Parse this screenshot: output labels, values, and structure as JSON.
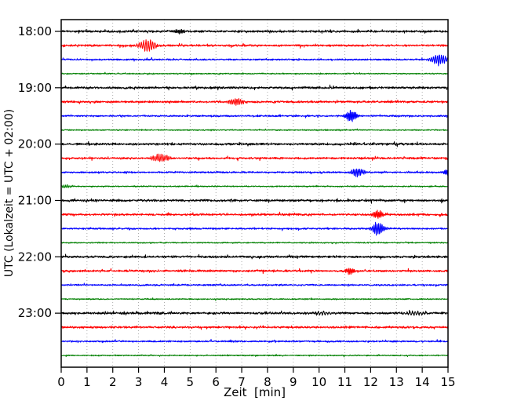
{
  "chart_data": {
    "type": "line",
    "variant": "seismogram-helicorder-dayplot",
    "title": "",
    "xlabel": "Zeit  [min]",
    "ylabel": "UTC (Lokalzeit = UTC + 02:00)",
    "background": "#ffffff",
    "grid": {
      "vertical": true,
      "horizontal": false,
      "style": "dotted",
      "color": "#999999"
    },
    "x_axis": {
      "min": 0,
      "max": 15,
      "tick_labels": [
        "0",
        "1",
        "2",
        "3",
        "4",
        "5",
        "6",
        "7",
        "8",
        "9",
        "10",
        "11",
        "12",
        "13",
        "14",
        "15"
      ]
    },
    "y_axis": {
      "hour_tick_labels": [
        "18:00",
        "19:00",
        "20:00",
        "21:00",
        "22:00",
        "23:00"
      ]
    },
    "minutes_per_line": 15,
    "line_colors_cycle": [
      "#000000",
      "#ff0000",
      "#0000ff",
      "#008000"
    ],
    "traces": [
      {
        "time": "18:00",
        "color": "#000000",
        "noise": 1.5,
        "events": [
          {
            "t": 4.6,
            "amp": 2.4,
            "sigma": 0.15
          }
        ]
      },
      {
        "time": "18:15",
        "color": "#ff0000",
        "noise": 1.4,
        "events": [
          {
            "t": 3.35,
            "amp": 6.2,
            "sigma": 0.25
          }
        ]
      },
      {
        "time": "18:30",
        "color": "#0000ff",
        "noise": 1.1,
        "events": [
          {
            "t": 14.65,
            "amp": 6.5,
            "sigma": 0.22
          }
        ]
      },
      {
        "time": "18:45",
        "color": "#008000",
        "noise": 0.8,
        "events": []
      },
      {
        "time": "19:00",
        "color": "#000000",
        "noise": 1.5,
        "events": []
      },
      {
        "time": "19:15",
        "color": "#ff0000",
        "noise": 1.4,
        "events": [
          {
            "t": 6.8,
            "amp": 4.0,
            "sigma": 0.2
          }
        ]
      },
      {
        "time": "19:30",
        "color": "#0000ff",
        "noise": 1.1,
        "events": [
          {
            "t": 11.25,
            "amp": 6.5,
            "sigma": 0.15
          }
        ]
      },
      {
        "time": "19:45",
        "color": "#008000",
        "noise": 0.8,
        "events": []
      },
      {
        "time": "20:00",
        "color": "#000000",
        "noise": 1.5,
        "events": []
      },
      {
        "time": "20:15",
        "color": "#ff0000",
        "noise": 1.4,
        "events": [
          {
            "t": 3.85,
            "amp": 4.5,
            "sigma": 0.22
          }
        ]
      },
      {
        "time": "20:30",
        "color": "#0000ff",
        "noise": 1.1,
        "events": [
          {
            "t": 11.5,
            "amp": 5.0,
            "sigma": 0.18
          },
          {
            "t": 14.95,
            "amp": 3.5,
            "sigma": 0.1
          }
        ]
      },
      {
        "time": "20:45",
        "color": "#008000",
        "noise": 0.8,
        "events": [
          {
            "t": 0.15,
            "amp": 1.6,
            "sigma": 0.2
          }
        ]
      },
      {
        "time": "21:00",
        "color": "#000000",
        "noise": 1.5,
        "events": [
          {
            "t": 10.7,
            "amp": 1.8,
            "sigma": 0.05
          }
        ]
      },
      {
        "time": "21:15",
        "color": "#ff0000",
        "noise": 1.4,
        "events": [
          {
            "t": 4.2,
            "amp": 1.5,
            "sigma": 0.07
          },
          {
            "t": 12.3,
            "amp": 4.2,
            "sigma": 0.15
          }
        ]
      },
      {
        "time": "21:30",
        "color": "#0000ff",
        "noise": 1.1,
        "events": [
          {
            "t": 12.3,
            "amp": 7.5,
            "sigma": 0.18
          }
        ]
      },
      {
        "time": "21:45",
        "color": "#008000",
        "noise": 0.8,
        "events": []
      },
      {
        "time": "22:00",
        "color": "#000000",
        "noise": 1.5,
        "events": []
      },
      {
        "time": "22:15",
        "color": "#ff0000",
        "noise": 1.4,
        "events": [
          {
            "t": 11.2,
            "amp": 3.2,
            "sigma": 0.13
          }
        ]
      },
      {
        "time": "22:30",
        "color": "#0000ff",
        "noise": 1.1,
        "events": []
      },
      {
        "time": "22:45",
        "color": "#008000",
        "noise": 0.8,
        "events": []
      },
      {
        "time": "23:00",
        "color": "#000000",
        "noise": 1.5,
        "events": [
          {
            "t": 10.05,
            "amp": 2.0,
            "sigma": 0.3
          },
          {
            "t": 13.7,
            "amp": 2.0,
            "sigma": 0.3
          }
        ]
      },
      {
        "time": "23:15",
        "color": "#ff0000",
        "noise": 1.4,
        "events": []
      },
      {
        "time": "23:30",
        "color": "#0000ff",
        "noise": 1.1,
        "events": []
      },
      {
        "time": "23:45",
        "color": "#008000",
        "noise": 0.8,
        "events": []
      }
    ]
  }
}
